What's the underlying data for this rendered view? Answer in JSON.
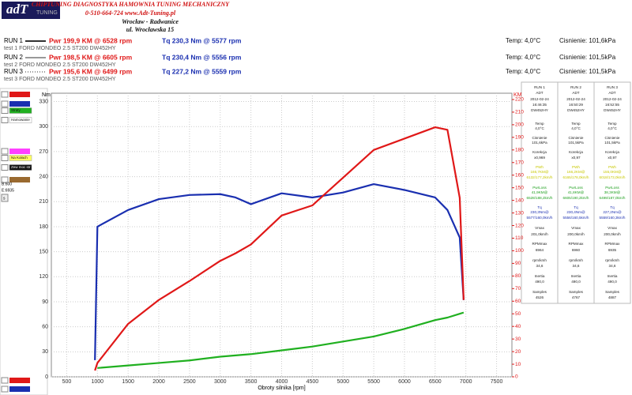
{
  "header": {
    "logo": "adT",
    "logo_sub": "TUNING",
    "tagline": "CHIPTUNING  DIAGNOSTYKA HAMOWNIA TUNING MECHANICZNY",
    "contact": "0-510-664-724  www.Adt-Tuning.pl",
    "city": "Wrocław - Radwanice",
    "street": "ul. Wrocławska 15"
  },
  "runs": [
    {
      "label": "RUN 1",
      "power": "Pwr  199,9 KM @ 6528 rpm",
      "torque": "Tq 230,3 Nm @ 5577 rpm",
      "temp": "Temp: 4,0°C",
      "pressure": "Cisnienie: 101,6kPa",
      "car": "test 1 FORD MONDEO 2.5 ST200 DW452HY"
    },
    {
      "label": "RUN 2",
      "power": "Pwr  198,5 KM @ 6605 rpm",
      "torque": "Tq 230,4 Nm @ 5556 rpm",
      "temp": "Temp: 4,0°C",
      "pressure": "Cisnienie: 101,5kPa",
      "car": "test 2 FORD MONDEO 2.5 ST200 DW452HY"
    },
    {
      "label": "RUN 3",
      "power": "Pwr  195,6 KM @ 6499 rpm",
      "torque": "Tq 227,2 Nm @ 5559 rpm",
      "temp": "Temp: 4,0°C",
      "pressure": "Cisnienie: 101,5kPa",
      "car": "test 3 FORD MONDEO 2.5 ST200 DW452HY"
    }
  ],
  "panel": {
    "items": [
      {
        "label": "Straty",
        "color": "#20b020"
      },
      {
        "label": "Hamowanie",
        "color": "#ffffff"
      },
      {
        "label": "Na Kołach",
        "color": "#ffff60"
      },
      {
        "label": "Zew moc str",
        "color": "#101010"
      }
    ],
    "begin": "B:600",
    "end": "E:6935",
    "button": "s"
  },
  "table": {
    "columns": [
      [
        "RUN 1",
        "ADT",
        "2012-02-24",
        "16:46:35",
        "DW452HY",
        "Temp",
        "4,0°C",
        "Cisnienie",
        "101,6kPa",
        "Korekcja",
        "x0,969",
        "PWh",
        "166,7KM@",
        "6132/177,2km/h",
        "PwrLoss",
        "41,9KM@",
        "6528/188,2km/h",
        "Tq",
        "230,3Nm@",
        "5577/160,0km/h",
        "Vmax",
        "201,0km/h",
        "RPMmax",
        "6964",
        "rpm/kmh",
        "34,6",
        "Inertia",
        "490,0",
        "Samples",
        "4526"
      ],
      [
        "RUN 2",
        "ADT",
        "2012-02-24",
        "16:50:29",
        "DW452HY",
        "Temp",
        "4,0°C",
        "Cisnienie",
        "101,5kPa",
        "Korekcja",
        "x0,97",
        "PWh",
        "166,2KM@",
        "6165/178,0km/h",
        "PwrLoss",
        "41,8KM@",
        "6605/190,2km/h",
        "Tq",
        "230,4Nm@",
        "5556/160,5km/h",
        "Vmax",
        "200,0km/h",
        "RPMmax",
        "6960",
        "rpm/kmh",
        "34,6",
        "Inertia",
        "490,0",
        "Samples",
        "4767"
      ],
      [
        "RUN 3",
        "ADT",
        "2012-02-24",
        "16:52:55",
        "DW452HY",
        "Temp",
        "4,0°C",
        "Cisnienie",
        "101,5kPa",
        "Korekcja",
        "x0,97",
        "PWh",
        "155,0KM@",
        "6018/173,0km/h",
        "PwrLoss",
        "38,3KM@",
        "6499/187,0km/h",
        "Tq",
        "227,2Nm@",
        "5559/160,3km/h",
        "Vmax",
        "200,0km/h",
        "RPMmax",
        "6935",
        "rpm/kmh",
        "34,6",
        "Inertia",
        "490,0",
        "Samples",
        "4887"
      ]
    ]
  },
  "chart_data": {
    "type": "line",
    "x_label": "Obroty silnika [rpm]",
    "y_label": "Nm",
    "y2_label": "KM",
    "x": [
      960,
      1000,
      1500,
      2000,
      2500,
      3000,
      3250,
      3500,
      4000,
      4500,
      5000,
      5500,
      6000,
      6500,
      6700,
      6900,
      6964
    ],
    "xlim": [
      250,
      7750
    ],
    "xticks": [
      500,
      1000,
      1500,
      2000,
      2500,
      3000,
      3500,
      4000,
      4500,
      5000,
      5500,
      6000,
      6500,
      7000,
      7500
    ],
    "ylim": [
      0,
      340
    ],
    "yticks": [
      0,
      30,
      60,
      90,
      120,
      150,
      180,
      210,
      240,
      270,
      300,
      330
    ],
    "y2lim": [
      0,
      225
    ],
    "y2ticks": [
      0,
      10,
      20,
      30,
      40,
      50,
      60,
      70,
      80,
      90,
      100,
      110,
      120,
      130,
      140,
      150,
      160,
      170,
      180,
      190,
      200,
      210,
      220
    ],
    "grid": true,
    "series": [
      {
        "color": "#1a2fb0",
        "axis": "y",
        "values": [
          20,
          180,
          200,
          213,
          218,
          219,
          215,
          207,
          220,
          215,
          221,
          231,
          224,
          215,
          200,
          167,
          92
        ]
      },
      {
        "color": "#e01818",
        "axis": "y2",
        "values": [
          5,
          11,
          42,
          61,
          76,
          92,
          98,
          105,
          128,
          136,
          158,
          180,
          189,
          198,
          196,
          142,
          61
        ]
      },
      {
        "color": "#20b020",
        "axis": "y2",
        "values": [
          null,
          7,
          9,
          11,
          13,
          16,
          17,
          18,
          21,
          24,
          28,
          32,
          38,
          45,
          47,
          50,
          51
        ]
      }
    ]
  }
}
